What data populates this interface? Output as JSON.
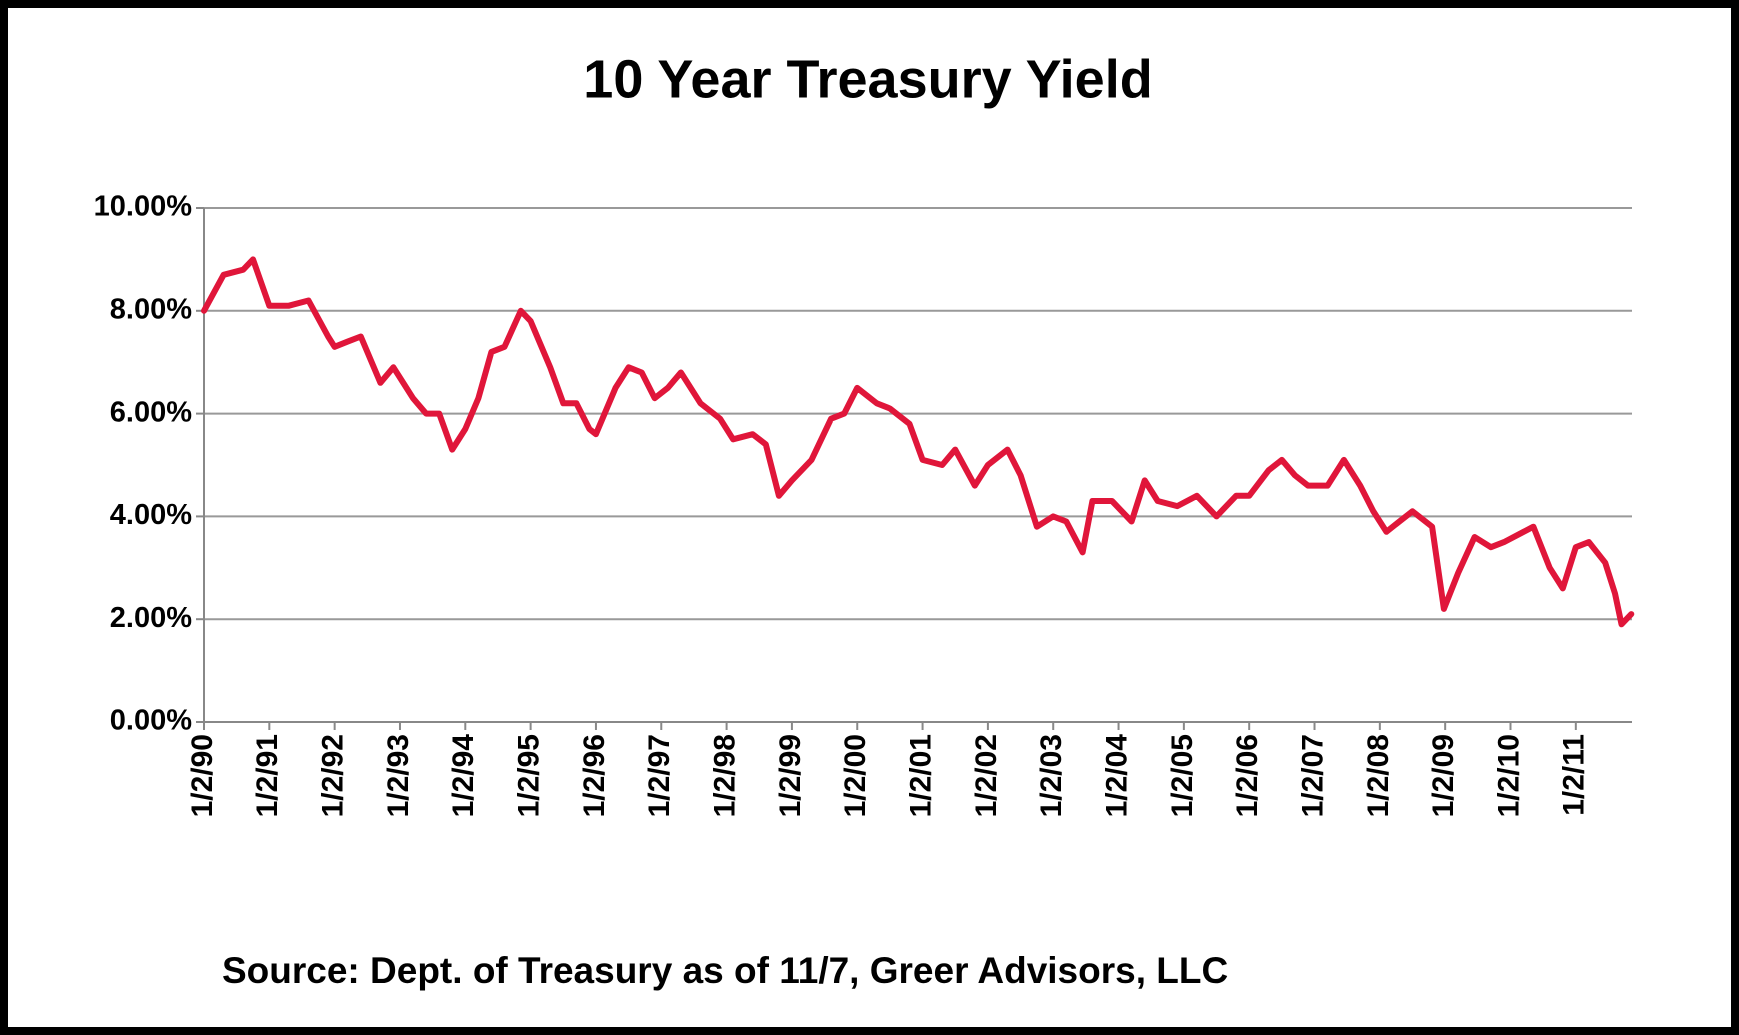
{
  "chart_data": {
    "type": "line",
    "title": "10 Year Treasury Yield",
    "source": "Source: Dept. of Treasury as of 11/7, Greer Advisors, LLC",
    "xlim": [
      1990,
      2011.86
    ],
    "xticks": [
      {
        "value": 1990,
        "label": "1/2/90"
      },
      {
        "value": 1991,
        "label": "1/2/91"
      },
      {
        "value": 1992,
        "label": "1/2/92"
      },
      {
        "value": 1993,
        "label": "1/2/93"
      },
      {
        "value": 1994,
        "label": "1/2/94"
      },
      {
        "value": 1995,
        "label": "1/2/95"
      },
      {
        "value": 1996,
        "label": "1/2/96"
      },
      {
        "value": 1997,
        "label": "1/2/97"
      },
      {
        "value": 1998,
        "label": "1/2/98"
      },
      {
        "value": 1999,
        "label": "1/2/99"
      },
      {
        "value": 2000,
        "label": "1/2/00"
      },
      {
        "value": 2001,
        "label": "1/2/01"
      },
      {
        "value": 2002,
        "label": "1/2/02"
      },
      {
        "value": 2003,
        "label": "1/2/03"
      },
      {
        "value": 2004,
        "label": "1/2/04"
      },
      {
        "value": 2005,
        "label": "1/2/05"
      },
      {
        "value": 2006,
        "label": "1/2/06"
      },
      {
        "value": 2007,
        "label": "1/2/07"
      },
      {
        "value": 2008,
        "label": "1/2/08"
      },
      {
        "value": 2009,
        "label": "1/2/09"
      },
      {
        "value": 2010,
        "label": "1/2/10"
      },
      {
        "value": 2011,
        "label": "1/2/11"
      }
    ],
    "ylim": [
      0,
      10
    ],
    "yticks": [
      {
        "value": 0,
        "label": "0.00%"
      },
      {
        "value": 2,
        "label": "2.00%"
      },
      {
        "value": 4,
        "label": "4.00%"
      },
      {
        "value": 6,
        "label": "6.00%"
      },
      {
        "value": 8,
        "label": "8.00%"
      },
      {
        "value": 10,
        "label": "10.00%"
      }
    ],
    "grid": true,
    "color": "#e0163a",
    "x": [
      1990.0,
      1990.3,
      1990.6,
      1990.75,
      1991.0,
      1991.3,
      1991.6,
      1991.9,
      1992.0,
      1992.2,
      1992.4,
      1992.7,
      1992.9,
      1993.2,
      1993.4,
      1993.6,
      1993.8,
      1994.0,
      1994.2,
      1994.4,
      1994.6,
      1994.85,
      1995.0,
      1995.3,
      1995.5,
      1995.7,
      1995.9,
      1996.0,
      1996.3,
      1996.5,
      1996.7,
      1996.9,
      1997.1,
      1997.3,
      1997.6,
      1997.9,
      1998.1,
      1998.4,
      1998.6,
      1998.8,
      1999.0,
      1999.3,
      1999.6,
      1999.8,
      2000.0,
      2000.3,
      2000.5,
      2000.8,
      2001.0,
      2001.3,
      2001.5,
      2001.8,
      2002.0,
      2002.3,
      2002.5,
      2002.75,
      2003.0,
      2003.2,
      2003.45,
      2003.6,
      2003.9,
      2004.2,
      2004.4,
      2004.6,
      2004.9,
      2005.2,
      2005.5,
      2005.8,
      2006.0,
      2006.3,
      2006.5,
      2006.7,
      2006.9,
      2007.2,
      2007.45,
      2007.7,
      2007.9,
      2008.1,
      2008.3,
      2008.5,
      2008.8,
      2008.98,
      2009.2,
      2009.45,
      2009.7,
      2009.9,
      2010.2,
      2010.35,
      2010.6,
      2010.8,
      2011.0,
      2011.2,
      2011.45,
      2011.6,
      2011.7,
      2011.85
    ],
    "values": [
      8.0,
      8.7,
      8.8,
      9.0,
      8.1,
      8.1,
      8.2,
      7.5,
      7.3,
      7.4,
      7.5,
      6.6,
      6.9,
      6.3,
      6.0,
      6.0,
      5.3,
      5.7,
      6.3,
      7.2,
      7.3,
      8.0,
      7.8,
      6.9,
      6.2,
      6.2,
      5.7,
      5.6,
      6.5,
      6.9,
      6.8,
      6.3,
      6.5,
      6.8,
      6.2,
      5.9,
      5.5,
      5.6,
      5.4,
      4.4,
      4.7,
      5.1,
      5.9,
      6.0,
      6.5,
      6.2,
      6.1,
      5.8,
      5.1,
      5.0,
      5.3,
      4.6,
      5.0,
      5.3,
      4.8,
      3.8,
      4.0,
      3.9,
      3.3,
      4.3,
      4.3,
      3.9,
      4.7,
      4.3,
      4.2,
      4.4,
      4.0,
      4.4,
      4.4,
      4.9,
      5.1,
      4.8,
      4.6,
      4.6,
      5.1,
      4.6,
      4.1,
      3.7,
      3.9,
      4.1,
      3.8,
      2.2,
      2.9,
      3.6,
      3.4,
      3.5,
      3.7,
      3.8,
      3.0,
      2.6,
      3.4,
      3.5,
      3.1,
      2.5,
      1.9,
      2.1
    ]
  }
}
